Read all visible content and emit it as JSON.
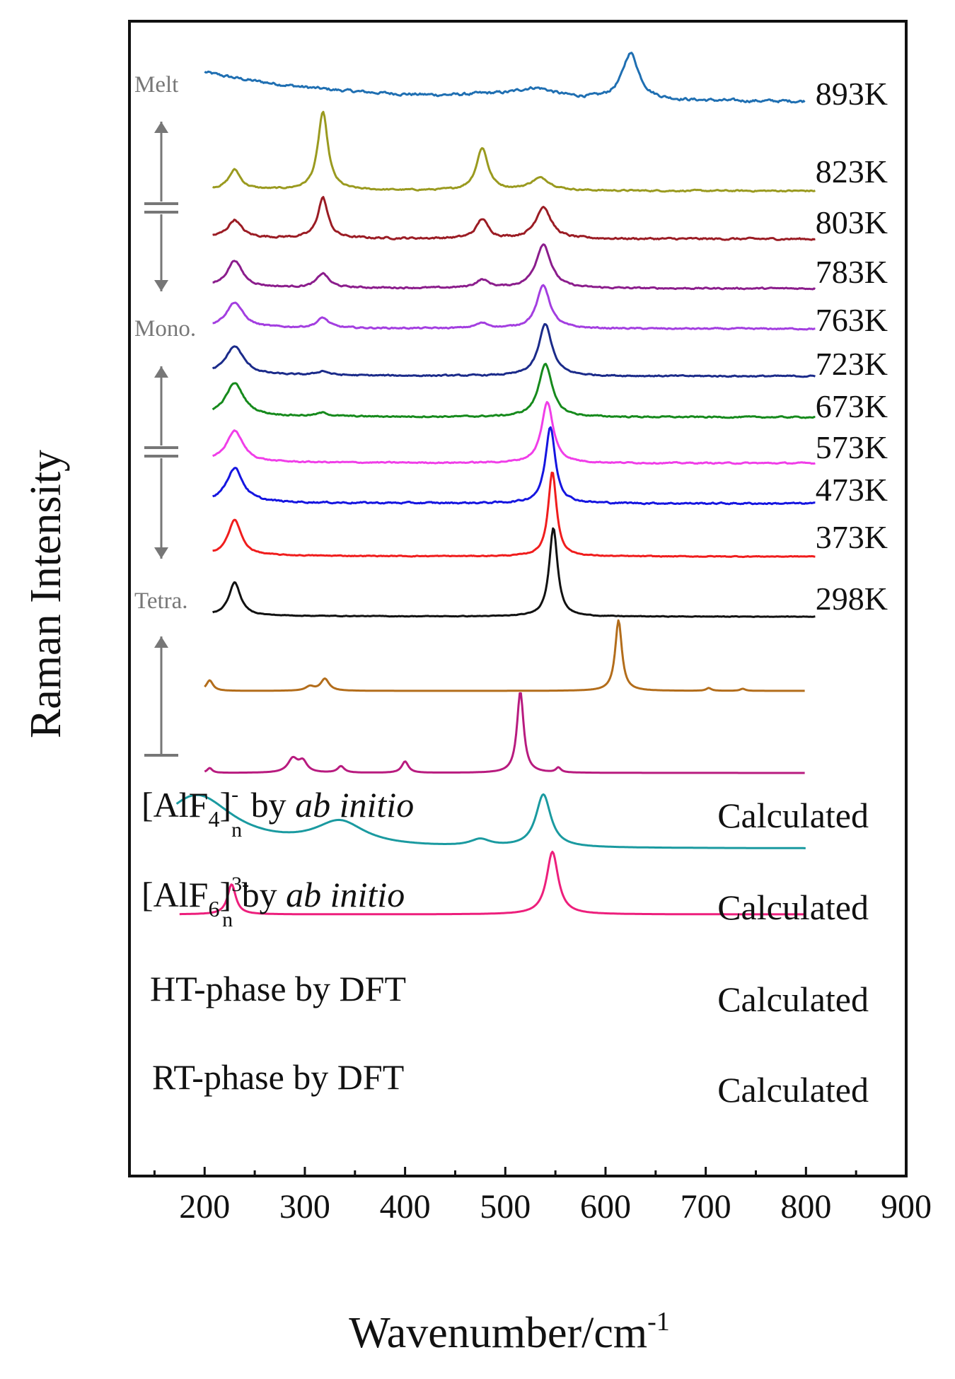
{
  "chart_data": {
    "type": "line",
    "title": "",
    "xlabel": "Wavenumber/cm",
    "xlabel_superscript": "-1",
    "ylabel": "Raman Intensity",
    "xlim": [
      125,
      900
    ],
    "x_ticks": [
      200,
      300,
      400,
      500,
      600,
      700,
      800,
      900
    ],
    "x_tick_labels": [
      "200",
      "300",
      "400",
      "500",
      "600",
      "700",
      "800",
      "900"
    ],
    "y_ticks_shown": false,
    "series": [
      {
        "name": "893K",
        "label": "893K",
        "color": "#1f6fb2",
        "x_start": 200,
        "x_end": 800,
        "baseline": 0.05,
        "start_level": 0.35,
        "noise": 0.04,
        "peaks": [
          {
            "x": 625,
            "h": 0.55,
            "w": 10
          },
          {
            "x": 530,
            "h": 0.12,
            "w": 25
          },
          {
            "x": 480,
            "h": 0.03,
            "w": 30
          }
        ]
      },
      {
        "name": "823K",
        "label": "823K",
        "color": "#9a9a1f",
        "x_start": 208,
        "x_end": 810,
        "baseline": 0.0,
        "start_level": 0.02,
        "noise": 0.02,
        "peaks": [
          {
            "x": 230,
            "h": 0.22,
            "w": 7
          },
          {
            "x": 318,
            "h": 0.88,
            "w": 6
          },
          {
            "x": 477,
            "h": 0.48,
            "w": 7
          },
          {
            "x": 535,
            "h": 0.14,
            "w": 12
          }
        ]
      },
      {
        "name": "803K",
        "label": "803K",
        "color": "#9b1c24",
        "x_start": 208,
        "x_end": 810,
        "baseline": 0.0,
        "start_level": 0.02,
        "noise": 0.025,
        "peaks": [
          {
            "x": 230,
            "h": 0.19,
            "w": 8
          },
          {
            "x": 318,
            "h": 0.44,
            "w": 6
          },
          {
            "x": 477,
            "h": 0.21,
            "w": 7
          },
          {
            "x": 538,
            "h": 0.35,
            "w": 9
          }
        ]
      },
      {
        "name": "783K",
        "label": "783K",
        "color": "#8b1d8c",
        "x_start": 208,
        "x_end": 810,
        "baseline": 0.0,
        "start_level": 0.02,
        "noise": 0.02,
        "peaks": [
          {
            "x": 230,
            "h": 0.3,
            "w": 9
          },
          {
            "x": 318,
            "h": 0.16,
            "w": 7
          },
          {
            "x": 477,
            "h": 0.09,
            "w": 8
          },
          {
            "x": 538,
            "h": 0.5,
            "w": 9
          }
        ]
      },
      {
        "name": "763K",
        "label": "763K",
        "color": "#a33ee0",
        "x_start": 208,
        "x_end": 810,
        "baseline": 0.0,
        "start_level": 0.02,
        "noise": 0.02,
        "peaks": [
          {
            "x": 230,
            "h": 0.3,
            "w": 10
          },
          {
            "x": 318,
            "h": 0.12,
            "w": 7
          },
          {
            "x": 477,
            "h": 0.06,
            "w": 8
          },
          {
            "x": 538,
            "h": 0.52,
            "w": 8
          }
        ]
      },
      {
        "name": "723K",
        "label": "723K",
        "color": "#1b2b8a",
        "x_start": 208,
        "x_end": 810,
        "baseline": 0.0,
        "start_level": 0.02,
        "noise": 0.02,
        "peaks": [
          {
            "x": 230,
            "h": 0.35,
            "w": 11
          },
          {
            "x": 318,
            "h": 0.05,
            "w": 7
          },
          {
            "x": 540,
            "h": 0.64,
            "w": 8
          }
        ]
      },
      {
        "name": "673K",
        "label": "673K",
        "color": "#168a1c",
        "x_start": 208,
        "x_end": 810,
        "baseline": 0.0,
        "start_level": 0.02,
        "noise": 0.02,
        "peaks": [
          {
            "x": 230,
            "h": 0.4,
            "w": 11
          },
          {
            "x": 318,
            "h": 0.04,
            "w": 7
          },
          {
            "x": 540,
            "h": 0.66,
            "w": 8
          }
        ]
      },
      {
        "name": "573K",
        "label": "573K",
        "color": "#f03ee8",
        "x_start": 208,
        "x_end": 810,
        "baseline": 0.0,
        "start_level": 0.02,
        "noise": 0.02,
        "peaks": [
          {
            "x": 230,
            "h": 0.42,
            "w": 10
          },
          {
            "x": 542,
            "h": 0.82,
            "w": 7
          }
        ]
      },
      {
        "name": "473K",
        "label": "473K",
        "color": "#1515e0",
        "x_start": 208,
        "x_end": 810,
        "baseline": 0.0,
        "start_level": 0.02,
        "noise": 0.025,
        "peaks": [
          {
            "x": 230,
            "h": 0.44,
            "w": 10
          },
          {
            "x": 545,
            "h": 0.98,
            "w": 6
          }
        ]
      },
      {
        "name": "373K",
        "label": "373K",
        "color": "#f01d1d",
        "x_start": 208,
        "x_end": 810,
        "baseline": 0.0,
        "start_level": 0.02,
        "noise": 0.015,
        "peaks": [
          {
            "x": 230,
            "h": 0.5,
            "w": 8
          },
          {
            "x": 547,
            "h": 1.2,
            "w": 5
          }
        ]
      },
      {
        "name": "298K",
        "label": "298K",
        "color": "#111111",
        "x_start": 208,
        "x_end": 810,
        "baseline": 0.0,
        "start_level": 0.02,
        "noise": 0.012,
        "peaks": [
          {
            "x": 230,
            "h": 0.52,
            "w": 7
          },
          {
            "x": 548,
            "h": 1.4,
            "w": 5
          }
        ]
      },
      {
        "name": "[AlF4]-n by ab initio",
        "label": "Calculated",
        "color": "#b36d1b",
        "x_start": 200,
        "x_end": 800,
        "baseline": 0.0,
        "start_level": 0.0,
        "noise": 0.0,
        "peaks": [
          {
            "x": 205,
            "h": 0.15,
            "w": 4
          },
          {
            "x": 320,
            "h": 0.17,
            "w": 5
          },
          {
            "x": 305,
            "h": 0.06,
            "w": 5
          },
          {
            "x": 613,
            "h": 1.0,
            "w": 4
          },
          {
            "x": 703,
            "h": 0.04,
            "w": 3
          },
          {
            "x": 737,
            "h": 0.03,
            "w": 3
          }
        ]
      },
      {
        "name": "[AlF6]3-n by ab initio",
        "label": "Calculated",
        "color": "#b81b7f",
        "x_start": 200,
        "x_end": 800,
        "baseline": 0.0,
        "start_level": 0.0,
        "noise": 0.0,
        "peaks": [
          {
            "x": 205,
            "h": 0.06,
            "w": 3
          },
          {
            "x": 288,
            "h": 0.17,
            "w": 6
          },
          {
            "x": 298,
            "h": 0.13,
            "w": 5
          },
          {
            "x": 336,
            "h": 0.08,
            "w": 4
          },
          {
            "x": 400,
            "h": 0.14,
            "w": 4
          },
          {
            "x": 515,
            "h": 1.0,
            "w": 4
          },
          {
            "x": 553,
            "h": 0.06,
            "w": 3
          }
        ]
      },
      {
        "name": "HT-phase by DFT",
        "label": "Calculated",
        "color": "#1a9aa0",
        "x_start": 172,
        "x_end": 800,
        "baseline": 0.0,
        "start_level": 0.0,
        "noise": 0.0,
        "peaks": [
          {
            "x": 192,
            "h": 0.62,
            "w": 45
          },
          {
            "x": 335,
            "h": 0.28,
            "w": 30
          },
          {
            "x": 475,
            "h": 0.08,
            "w": 12
          },
          {
            "x": 538,
            "h": 0.62,
            "w": 9
          }
        ]
      },
      {
        "name": "RT-phase by DFT",
        "label": "Calculated",
        "color": "#ed1f7c",
        "x_start": 175,
        "x_end": 800,
        "baseline": 0.0,
        "start_level": 0.0,
        "noise": 0.0,
        "peaks": [
          {
            "x": 227,
            "h": 0.36,
            "w": 5
          },
          {
            "x": 547,
            "h": 0.75,
            "w": 7
          }
        ]
      }
    ],
    "annotations": {
      "phases": [
        "Melt",
        "Mono.",
        "Tetra."
      ],
      "calc_labels": [
        {
          "pre": "[AlF",
          "sub": "4",
          "sup": "-",
          "sub2": "n",
          "mid": " by ",
          "italic": "ab initio"
        },
        {
          "pre": "[AlF",
          "sub": "6",
          "sup": "3-",
          "sub2": "n",
          "mid": " by ",
          "italic": "ab initio"
        },
        {
          "text": "HT-phase by DFT"
        },
        {
          "text": "RT-phase by DFT"
        }
      ]
    }
  }
}
